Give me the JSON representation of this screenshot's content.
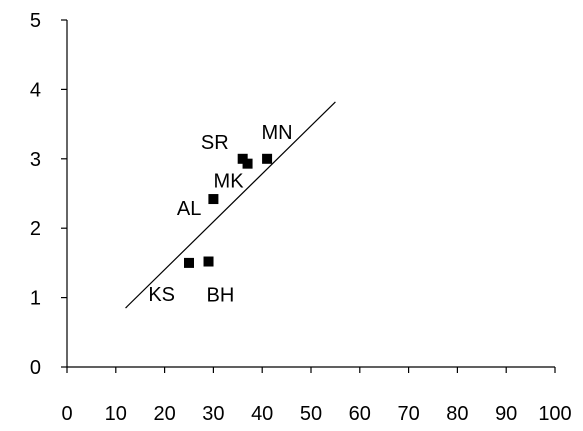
{
  "chart_data": {
    "type": "scatter",
    "title": "",
    "xlabel": "",
    "ylabel": "",
    "xlim": [
      0,
      100
    ],
    "ylim": [
      0,
      5
    ],
    "x_ticks": [
      0,
      10,
      20,
      30,
      40,
      50,
      60,
      70,
      80,
      90,
      100
    ],
    "y_ticks": [
      0,
      1,
      2,
      3,
      4,
      5
    ],
    "grid": false,
    "marker": "square",
    "marker_color": "#000000",
    "points": [
      {
        "label": "KS",
        "x": 25,
        "y": 1.5
      },
      {
        "label": "BH",
        "x": 29,
        "y": 1.52
      },
      {
        "label": "AL",
        "x": 30,
        "y": 2.42
      },
      {
        "label": "SR",
        "x": 36,
        "y": 3.0
      },
      {
        "label": "MK",
        "x": 37,
        "y": 2.93
      },
      {
        "label": "MN",
        "x": 41,
        "y": 3.0
      }
    ],
    "trendline": {
      "x": [
        12,
        55
      ],
      "y": [
        0.85,
        3.82
      ]
    }
  }
}
